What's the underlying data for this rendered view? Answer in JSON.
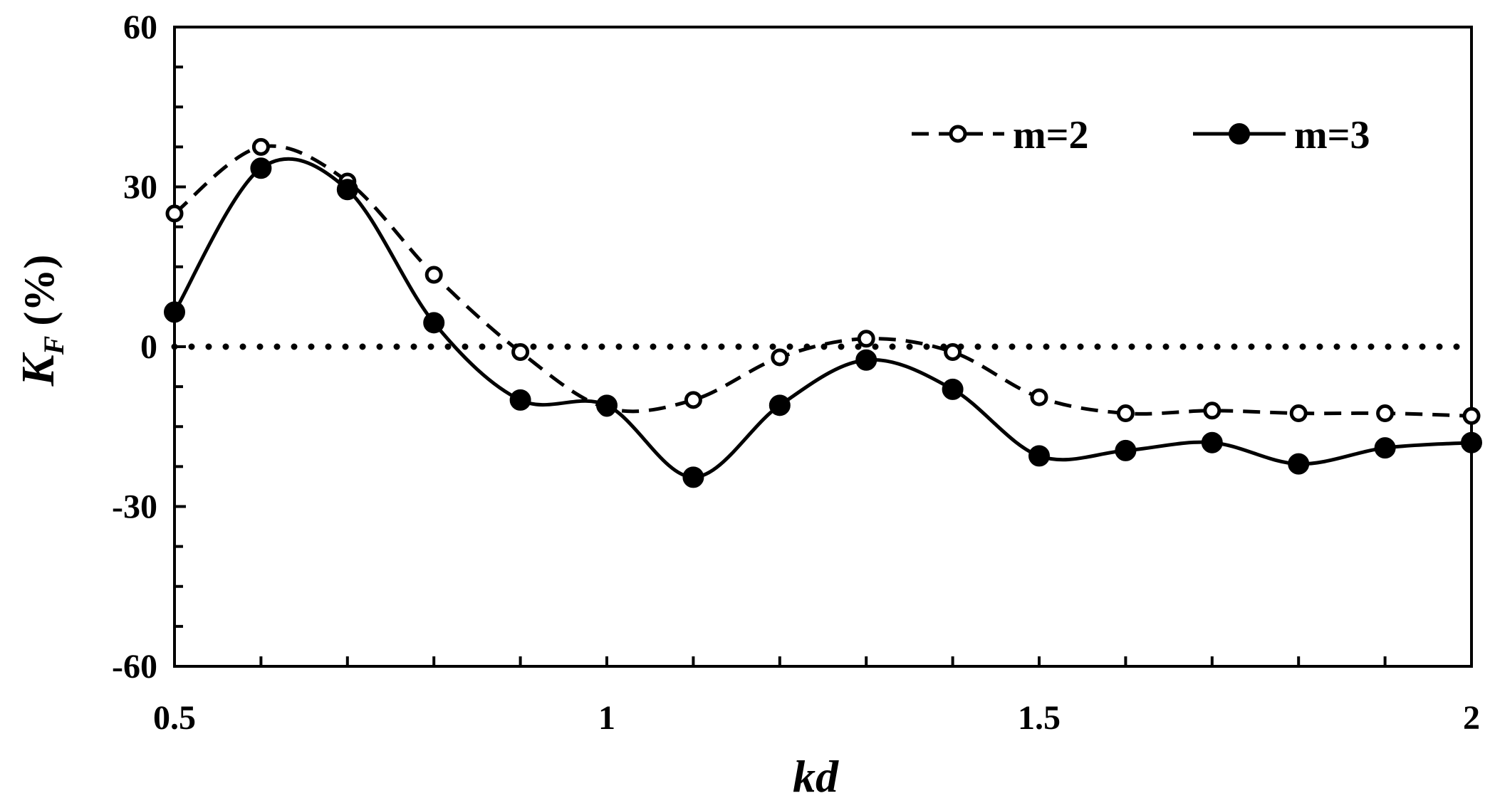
{
  "chart_data": {
    "type": "line",
    "title": "",
    "xlabel": "kd",
    "ylabel": {
      "base": "K",
      "subscript": "F",
      "unit": "(%)"
    },
    "xlim": [
      0.5,
      2
    ],
    "ylim": [
      -60,
      60
    ],
    "x_ticks": [
      0.5,
      1,
      1.5,
      2
    ],
    "x_tick_labels": [
      "0.5",
      "1",
      "1.5",
      "2"
    ],
    "y_ticks": [
      60,
      30,
      0,
      -30,
      -60
    ],
    "y_tick_labels": [
      "60",
      "30",
      "0",
      "-30",
      "-60"
    ],
    "grid": false,
    "legend_position": "top-right",
    "reference_line": {
      "y": 0,
      "style": "dotted"
    },
    "x": [
      0.5,
      0.6,
      0.7,
      0.8,
      0.9,
      1.0,
      1.1,
      1.2,
      1.3,
      1.4,
      1.5,
      1.6,
      1.7,
      1.8,
      1.9,
      2.0
    ],
    "series": [
      {
        "name": "m=2",
        "line_style": "dashed",
        "marker": "open-circle",
        "color": "#000000",
        "values": [
          25,
          37.5,
          31,
          13.5,
          -1,
          -11.5,
          -10,
          -2,
          1.5,
          -1,
          -9.5,
          -12.5,
          -12,
          -12.5,
          -12.5,
          -13
        ]
      },
      {
        "name": "m=3",
        "line_style": "solid",
        "marker": "filled-circle",
        "color": "#000000",
        "values": [
          6.5,
          33.5,
          29.5,
          4.5,
          -10,
          -11,
          -24.5,
          -11,
          -2.5,
          -8,
          -20.5,
          -19.5,
          -18,
          -22,
          -19,
          -18
        ]
      }
    ]
  }
}
